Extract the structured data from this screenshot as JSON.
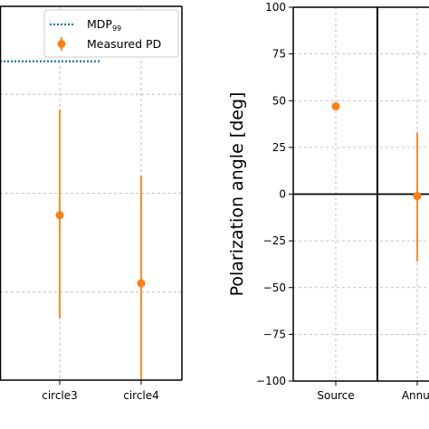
{
  "chart_data": [
    {
      "type": "scatter",
      "categories": [
        "circle3",
        "circle4"
      ],
      "ylim": [
        0,
        0.17
      ],
      "grid": true,
      "legend": "top-right",
      "series": [
        {
          "name": "MDP",
          "name_sub": "99",
          "style": "dotted-step",
          "values": [
            0.145,
            0.152
          ]
        },
        {
          "name": "Measured PD",
          "style": "errorbar",
          "values": [
            0.075,
            0.044
          ],
          "err_low": [
            0.047,
            0.044
          ],
          "err_high": [
            0.048,
            0.049
          ]
        }
      ]
    },
    {
      "type": "scatter",
      "categories": [
        "Source",
        "Annul"
      ],
      "ylabel": "Polarization angle [deg]",
      "ylim": [
        -100,
        100
      ],
      "yticks": [
        -100,
        -75,
        -50,
        -25,
        0,
        25,
        50,
        75,
        100
      ],
      "grid": true,
      "hline": 0,
      "vline_between": [
        0,
        1
      ],
      "series": [
        {
          "values": [
            47,
            -1
          ],
          "err_low": [
            0,
            35
          ],
          "err_high": [
            0,
            34
          ]
        }
      ]
    }
  ],
  "colors": {
    "mdp": "#1f77b4",
    "measured": "#ff7f0e",
    "grid": "#b0b0b0",
    "axis": "#000000"
  }
}
